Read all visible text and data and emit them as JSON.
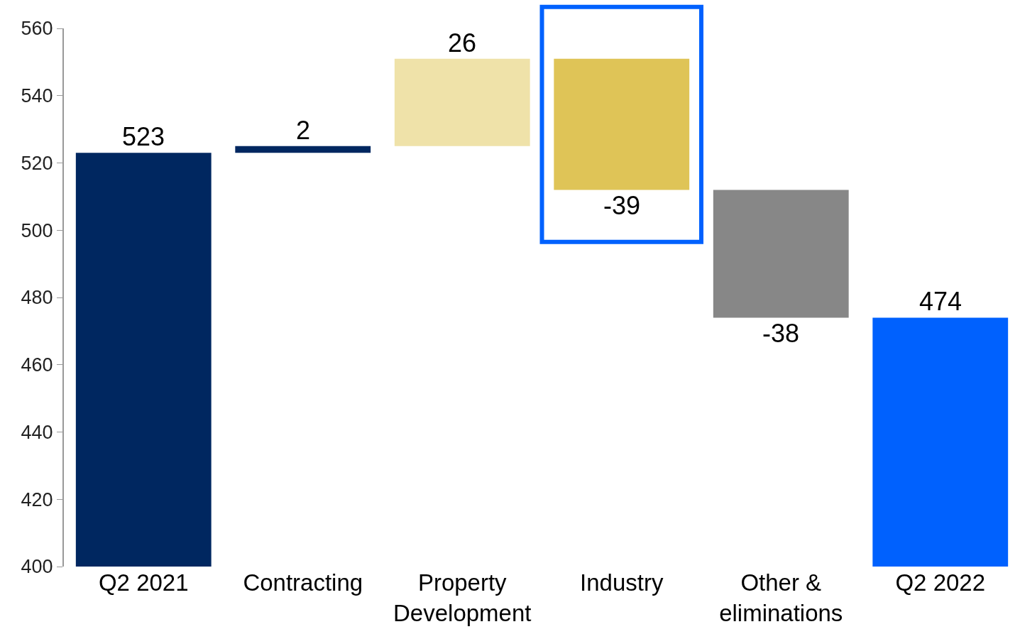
{
  "chart_data": {
    "type": "bar",
    "categories": [
      "Q2 2021",
      "Contracting",
      "Property Development",
      "Industry",
      "Other & eliminations",
      "Q2 2022"
    ],
    "values": [
      523,
      2,
      26,
      -39,
      -38,
      474
    ],
    "base": [
      0,
      523,
      525,
      551,
      512,
      0
    ],
    "colors": [
      "#002760",
      "#002760",
      "#efe2a9",
      "#dfc457",
      "#878787",
      "#0061fe"
    ],
    "ylim": [
      400,
      560
    ],
    "yticks": [
      400,
      420,
      440,
      460,
      480,
      500,
      520,
      540,
      560
    ],
    "data_labels": true,
    "legend": false
  }
}
